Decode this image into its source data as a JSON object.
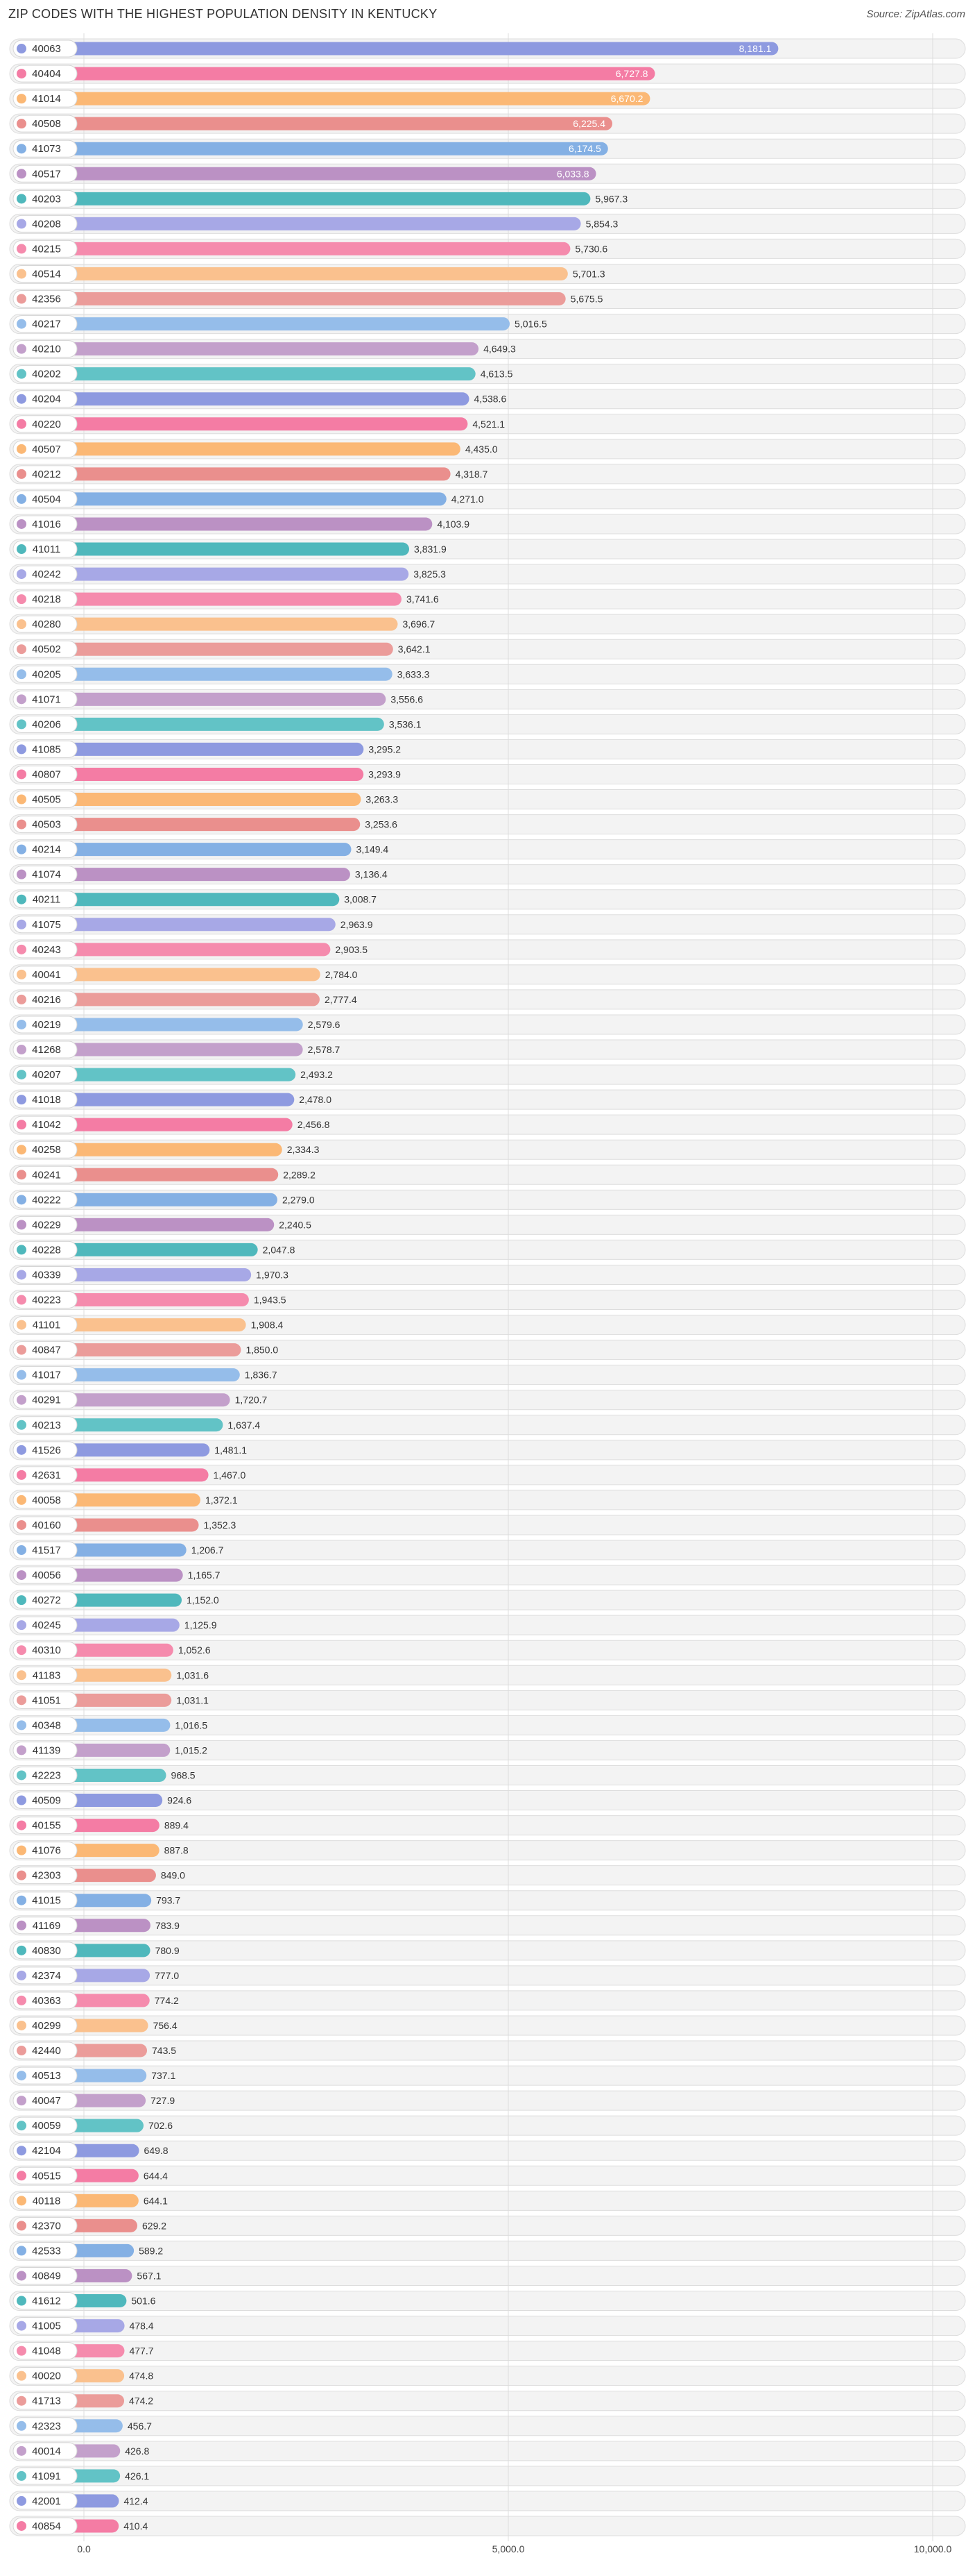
{
  "chart_data": {
    "type": "bar",
    "orientation": "horizontal",
    "title": "ZIP CODES WITH THE HIGHEST POPULATION DENSITY IN KENTUCKY",
    "source": "Source: ZipAtlas.com",
    "xlabel": "",
    "ylabel": "",
    "xlim": [
      0,
      10000
    ],
    "ticks": [
      "0.0",
      "5,000.0",
      "10,000.0"
    ],
    "categories": [
      "40063",
      "40404",
      "41014",
      "40508",
      "41073",
      "40517",
      "40203",
      "40208",
      "40215",
      "40514",
      "42356",
      "40217",
      "40210",
      "40202",
      "40204",
      "40220",
      "40507",
      "40212",
      "40504",
      "41016",
      "41011",
      "40242",
      "40218",
      "40280",
      "40502",
      "40205",
      "41071",
      "40206",
      "41085",
      "40807",
      "40505",
      "40503",
      "40214",
      "41074",
      "40211",
      "41075",
      "40243",
      "40041",
      "40216",
      "40219",
      "41268",
      "40207",
      "41018",
      "41042",
      "40258",
      "40241",
      "40222",
      "40229",
      "40228",
      "40339",
      "40223",
      "41101",
      "40847",
      "41017",
      "40291",
      "40213",
      "41526",
      "42631",
      "40058",
      "40160",
      "41517",
      "40056",
      "40272",
      "40245",
      "40310",
      "41183",
      "41051",
      "40348",
      "41139",
      "42223",
      "40509",
      "40155",
      "41076",
      "42303",
      "41015",
      "41169",
      "40830",
      "42374",
      "40363",
      "40299",
      "42440",
      "40513",
      "40047",
      "40059",
      "42104",
      "40515",
      "40118",
      "42370",
      "42533",
      "40849",
      "41612",
      "41005",
      "41048",
      "40020",
      "41713",
      "42323",
      "40014",
      "41091",
      "42001",
      "40854"
    ],
    "values": [
      8181.1,
      6727.8,
      6670.2,
      6225.4,
      6174.5,
      6033.8,
      5967.3,
      5854.3,
      5730.6,
      5701.3,
      5675.5,
      5016.5,
      4649.3,
      4613.5,
      4538.6,
      4521.1,
      4435.0,
      4318.7,
      4271.0,
      4103.9,
      3831.9,
      3825.3,
      3741.6,
      3696.7,
      3642.1,
      3633.3,
      3556.6,
      3536.1,
      3295.2,
      3293.9,
      3263.3,
      3253.6,
      3149.4,
      3136.4,
      3008.7,
      2963.9,
      2903.5,
      2784.0,
      2777.4,
      2579.6,
      2578.7,
      2493.2,
      2478.0,
      2456.8,
      2334.3,
      2289.2,
      2279.0,
      2240.5,
      2047.8,
      1970.3,
      1943.5,
      1908.4,
      1850.0,
      1836.7,
      1720.7,
      1637.4,
      1481.1,
      1467.0,
      1372.1,
      1352.3,
      1206.7,
      1165.7,
      1152.0,
      1125.9,
      1052.6,
      1031.6,
      1031.1,
      1016.5,
      1015.2,
      968.5,
      924.6,
      889.4,
      887.8,
      849.0,
      793.7,
      783.9,
      780.9,
      777.0,
      774.2,
      756.4,
      743.5,
      737.1,
      727.9,
      702.6,
      649.8,
      644.4,
      644.1,
      629.2,
      589.2,
      567.1,
      501.6,
      478.4,
      477.7,
      474.8,
      474.2,
      456.7,
      426.8,
      426.1,
      412.4,
      410.4
    ],
    "value_labels": [
      "8,181.1",
      "6,727.8",
      "6,670.2",
      "6,225.4",
      "6,174.5",
      "6,033.8",
      "5,967.3",
      "5,854.3",
      "5,730.6",
      "5,701.3",
      "5,675.5",
      "5,016.5",
      "4,649.3",
      "4,613.5",
      "4,538.6",
      "4,521.1",
      "4,435.0",
      "4,318.7",
      "4,271.0",
      "4,103.9",
      "3,831.9",
      "3,825.3",
      "3,741.6",
      "3,696.7",
      "3,642.1",
      "3,633.3",
      "3,556.6",
      "3,536.1",
      "3,295.2",
      "3,293.9",
      "3,263.3",
      "3,253.6",
      "3,149.4",
      "3,136.4",
      "3,008.7",
      "2,963.9",
      "2,903.5",
      "2,784.0",
      "2,777.4",
      "2,579.6",
      "2,578.7",
      "2,493.2",
      "2,478.0",
      "2,456.8",
      "2,334.3",
      "2,289.2",
      "2,279.0",
      "2,240.5",
      "2,047.8",
      "1,970.3",
      "1,943.5",
      "1,908.4",
      "1,850.0",
      "1,836.7",
      "1,720.7",
      "1,637.4",
      "1,481.1",
      "1,467.0",
      "1,372.1",
      "1,352.3",
      "1,206.7",
      "1,165.7",
      "1,152.0",
      "1,125.9",
      "1,052.6",
      "1,031.6",
      "1,031.1",
      "1,016.5",
      "1,015.2",
      "968.5",
      "924.6",
      "889.4",
      "887.8",
      "849.0",
      "793.7",
      "783.9",
      "780.9",
      "777.0",
      "774.2",
      "756.4",
      "743.5",
      "737.1",
      "727.9",
      "702.6",
      "649.8",
      "644.4",
      "644.1",
      "629.2",
      "589.2",
      "567.1",
      "501.6",
      "478.4",
      "477.7",
      "474.8",
      "474.2",
      "456.7",
      "426.8",
      "426.1",
      "412.4",
      "410.4"
    ],
    "values_inside_bar_count": 6,
    "palette": [
      "#8e9ae0",
      "#f47ca4",
      "#fbb875",
      "#ea8f8d",
      "#84b0e4",
      "#bb91c4",
      "#4fb8bc",
      "#a7a8e6",
      "#f58bad",
      "#fac18e",
      "#eb9c9a",
      "#95bdea",
      "#c3a0cb",
      "#62c3c6"
    ],
    "colors": {
      "row_bg": "#f3f3f3",
      "row_border": "#dddddd",
      "grid": "#dddddd",
      "text": "#333333",
      "inside_text": "#ffffff"
    }
  }
}
